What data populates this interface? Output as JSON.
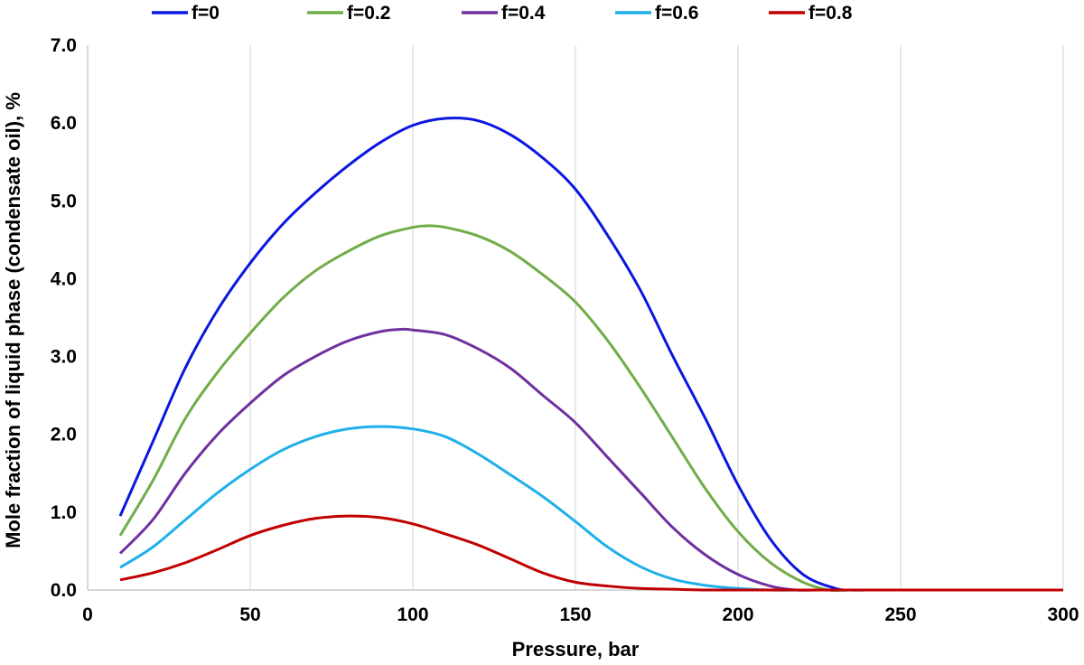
{
  "chart_data": {
    "type": "line",
    "title": "",
    "xlabel": "Pressure, bar",
    "ylabel": "Mole fraction of liquid phase (condensate oil), %",
    "xlim": [
      0,
      300
    ],
    "ylim": [
      0,
      7
    ],
    "xticks": [
      "0",
      "50",
      "100",
      "150",
      "200",
      "250",
      "300"
    ],
    "yticks": [
      "0.0",
      "1.0",
      "2.0",
      "3.0",
      "4.0",
      "5.0",
      "6.0",
      "7.0"
    ],
    "grid": "vertical",
    "legend_position": "top",
    "series": [
      {
        "name": "f=0",
        "color": "#0b16e0",
        "x": [
          10,
          20,
          30,
          40,
          50,
          60,
          70,
          80,
          90,
          100,
          110,
          120,
          130,
          140,
          150,
          160,
          170,
          180,
          190,
          200,
          210,
          220,
          230,
          235,
          240,
          250,
          260,
          280,
          300
        ],
        "y": [
          0.95,
          1.9,
          2.85,
          3.6,
          4.2,
          4.7,
          5.1,
          5.45,
          5.75,
          5.97,
          6.06,
          6.03,
          5.85,
          5.55,
          5.15,
          4.55,
          3.85,
          3.0,
          2.2,
          1.35,
          0.65,
          0.2,
          0.02,
          0.0,
          0.0,
          0.0,
          0.0,
          0.0,
          0.0
        ]
      },
      {
        "name": "f=0.2",
        "color": "#70ad47",
        "x": [
          10,
          20,
          30,
          40,
          50,
          60,
          70,
          80,
          90,
          100,
          105,
          110,
          120,
          130,
          140,
          150,
          160,
          170,
          180,
          190,
          200,
          210,
          220,
          228,
          235,
          250,
          300
        ],
        "y": [
          0.7,
          1.4,
          2.2,
          2.8,
          3.3,
          3.75,
          4.1,
          4.35,
          4.55,
          4.66,
          4.68,
          4.66,
          4.55,
          4.35,
          4.05,
          3.7,
          3.2,
          2.6,
          1.95,
          1.3,
          0.75,
          0.35,
          0.1,
          0.0,
          0.0,
          0.0,
          0.0
        ]
      },
      {
        "name": "f=0.4",
        "color": "#7030a0",
        "x": [
          10,
          20,
          30,
          40,
          50,
          60,
          70,
          80,
          90,
          97,
          100,
          110,
          120,
          130,
          140,
          150,
          160,
          170,
          180,
          190,
          200,
          210,
          218,
          225,
          250,
          300
        ],
        "y": [
          0.47,
          0.9,
          1.5,
          2.0,
          2.4,
          2.75,
          3.0,
          3.2,
          3.32,
          3.35,
          3.34,
          3.28,
          3.1,
          2.85,
          2.5,
          2.15,
          1.7,
          1.25,
          0.8,
          0.45,
          0.2,
          0.05,
          0.0,
          0.0,
          0.0,
          0.0
        ]
      },
      {
        "name": "f=0.6",
        "color": "#1fb0ea",
        "x": [
          10,
          20,
          30,
          40,
          50,
          60,
          70,
          80,
          90,
          100,
          110,
          120,
          130,
          140,
          150,
          160,
          170,
          180,
          190,
          200,
          210,
          220,
          250,
          300
        ],
        "y": [
          0.29,
          0.55,
          0.9,
          1.25,
          1.55,
          1.8,
          1.97,
          2.07,
          2.1,
          2.07,
          1.97,
          1.75,
          1.48,
          1.2,
          0.88,
          0.55,
          0.3,
          0.14,
          0.06,
          0.02,
          0.0,
          0.0,
          0.0,
          0.0
        ]
      },
      {
        "name": "f=0.8",
        "color": "#c00000",
        "x": [
          10,
          20,
          30,
          40,
          50,
          60,
          70,
          80,
          90,
          100,
          110,
          120,
          130,
          140,
          150,
          160,
          170,
          180,
          190,
          200,
          300
        ],
        "y": [
          0.13,
          0.22,
          0.35,
          0.52,
          0.7,
          0.83,
          0.92,
          0.95,
          0.93,
          0.85,
          0.72,
          0.58,
          0.4,
          0.22,
          0.1,
          0.05,
          0.02,
          0.01,
          0.0,
          0.0,
          0.0
        ]
      }
    ]
  }
}
